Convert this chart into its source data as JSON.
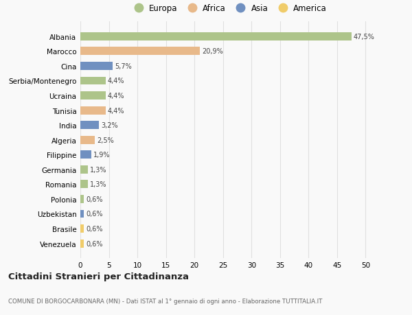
{
  "countries": [
    "Venezuela",
    "Brasile",
    "Uzbekistan",
    "Polonia",
    "Romania",
    "Germania",
    "Filippine",
    "Algeria",
    "India",
    "Tunisia",
    "Ucraina",
    "Serbia/Montenegro",
    "Cina",
    "Marocco",
    "Albania"
  ],
  "values": [
    0.6,
    0.6,
    0.6,
    0.6,
    1.3,
    1.3,
    1.9,
    2.5,
    3.2,
    4.4,
    4.4,
    4.4,
    5.7,
    20.9,
    47.5
  ],
  "labels": [
    "0,6%",
    "0,6%",
    "0,6%",
    "0,6%",
    "1,3%",
    "1,3%",
    "1,9%",
    "2,5%",
    "3,2%",
    "4,4%",
    "4,4%",
    "4,4%",
    "5,7%",
    "20,9%",
    "47,5%"
  ],
  "continent": [
    "America",
    "America",
    "Asia",
    "Europa",
    "Europa",
    "Europa",
    "Asia",
    "Africa",
    "Asia",
    "Africa",
    "Europa",
    "Europa",
    "Asia",
    "Africa",
    "Europa"
  ],
  "colors": {
    "Europa": "#adc48a",
    "Africa": "#e8b98a",
    "Asia": "#7090c0",
    "America": "#f0cc6a"
  },
  "legend_order": [
    "Europa",
    "Africa",
    "Asia",
    "America"
  ],
  "title": "Cittadini Stranieri per Cittadinanza",
  "subtitle": "COMUNE DI BORGOCARBONARA (MN) - Dati ISTAT al 1° gennaio di ogni anno - Elaborazione TUTTITALIA.IT",
  "xlabel_vals": [
    0,
    5,
    10,
    15,
    20,
    25,
    30,
    35,
    40,
    45,
    50
  ],
  "background_color": "#f9f9f9",
  "bar_height": 0.55,
  "grid_color": "#e0e0e0"
}
